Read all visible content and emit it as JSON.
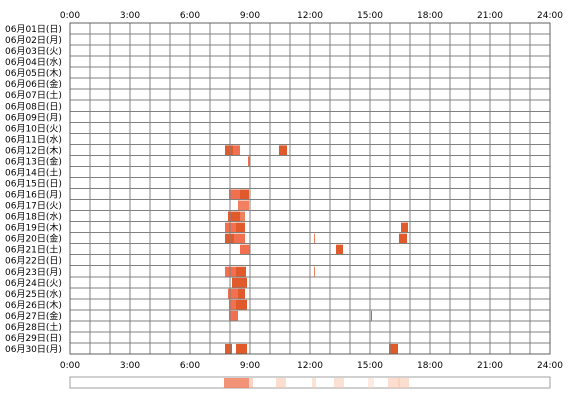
{
  "chart_data": {
    "type": "heatmap",
    "title": "",
    "xlabel": "",
    "ylabel": "",
    "x_range_hours": [
      0,
      24
    ],
    "x_ticks": [
      "0:00",
      "3:00",
      "6:00",
      "9:00",
      "12:00",
      "15:00",
      "18:00",
      "21:00",
      "24:00"
    ],
    "grid": true,
    "rows": [
      {
        "label": "06月01日(日)",
        "segments": []
      },
      {
        "label": "06月02日(月)",
        "segments": []
      },
      {
        "label": "06月03日(火)",
        "segments": []
      },
      {
        "label": "06月04日(水)",
        "segments": []
      },
      {
        "label": "06月05日(木)",
        "segments": []
      },
      {
        "label": "06月06日(金)",
        "segments": []
      },
      {
        "label": "06月07日(土)",
        "segments": []
      },
      {
        "label": "06月08日(日)",
        "segments": []
      },
      {
        "label": "06月09日(月)",
        "segments": []
      },
      {
        "label": "06月10日(火)",
        "segments": []
      },
      {
        "label": "06月11日(水)",
        "segments": []
      },
      {
        "label": "06月12日(木)",
        "segments": [
          [
            7.75,
            8.15,
            "#e05a2b"
          ],
          [
            8.15,
            8.5,
            "#f07050"
          ],
          [
            10.45,
            10.85,
            "#e05a2b"
          ]
        ]
      },
      {
        "label": "06月13日(金)",
        "segments": [
          [
            8.9,
            9.0,
            "#f07050"
          ]
        ]
      },
      {
        "label": "06月14日(土)",
        "segments": []
      },
      {
        "label": "06月15日(日)",
        "segments": []
      },
      {
        "label": "06月16日(月)",
        "segments": [
          [
            7.95,
            8.5,
            "#f07050"
          ],
          [
            8.5,
            8.95,
            "#e05a2b"
          ]
        ]
      },
      {
        "label": "06月17日(火)",
        "segments": [
          [
            8.4,
            8.95,
            "#f08060"
          ]
        ]
      },
      {
        "label": "06月18日(水)",
        "segments": [
          [
            7.9,
            8.5,
            "#e05a2b"
          ],
          [
            8.5,
            8.75,
            "#f08060"
          ]
        ]
      },
      {
        "label": "06月19日(木)",
        "segments": [
          [
            7.75,
            8.3,
            "#f07050"
          ],
          [
            8.3,
            8.75,
            "#e05a2b"
          ],
          [
            16.55,
            16.9,
            "#e05a2b"
          ]
        ]
      },
      {
        "label": "06月20日(金)",
        "segments": [
          [
            7.75,
            8.2,
            "#e05a2b"
          ],
          [
            8.2,
            8.75,
            "#f07050"
          ],
          [
            12.2,
            12.25,
            "#f08060"
          ],
          [
            16.45,
            16.85,
            "#e05a2b"
          ]
        ]
      },
      {
        "label": "06月21日(土)",
        "segments": [
          [
            8.5,
            9.0,
            "#f07050"
          ],
          [
            13.3,
            13.65,
            "#e05a2b"
          ]
        ]
      },
      {
        "label": "06月22日(日)",
        "segments": []
      },
      {
        "label": "06月23日(月)",
        "segments": [
          [
            7.75,
            8.3,
            "#f07050"
          ],
          [
            8.3,
            8.8,
            "#e05a2b"
          ],
          [
            12.2,
            12.25,
            "#f08060"
          ]
        ]
      },
      {
        "label": "06月24日(火)",
        "segments": [
          [
            8.1,
            8.85,
            "#e05a2b"
          ]
        ]
      },
      {
        "label": "06月25日(水)",
        "segments": [
          [
            7.9,
            8.4,
            "#f07050"
          ],
          [
            8.4,
            8.75,
            "#e05a2b"
          ]
        ]
      },
      {
        "label": "06月26日(木)",
        "segments": [
          [
            7.95,
            8.3,
            "#f07050"
          ],
          [
            8.3,
            8.85,
            "#e05a2b"
          ]
        ]
      },
      {
        "label": "06月27日(金)",
        "segments": [
          [
            7.95,
            8.4,
            "#f07050"
          ],
          [
            15.05,
            15.1,
            "#e05a2b"
          ]
        ]
      },
      {
        "label": "06月28日(土)",
        "segments": []
      },
      {
        "label": "06月29日(日)",
        "segments": []
      },
      {
        "label": "06月30日(月)",
        "segments": [
          [
            7.75,
            8.1,
            "#e05a2b"
          ],
          [
            8.3,
            8.85,
            "#e05a2b"
          ],
          [
            15.95,
            16.4,
            "#e05a2b"
          ]
        ]
      }
    ],
    "summary_bar": [
      [
        7.7,
        8.95,
        "#f08060",
        0.85
      ],
      [
        8.95,
        9.15,
        "#f4a080",
        0.45
      ],
      [
        10.3,
        10.8,
        "#f8c8b0",
        0.6
      ],
      [
        12.1,
        12.3,
        "#f8c8b0",
        0.5
      ],
      [
        13.2,
        13.7,
        "#f8c8b0",
        0.55
      ],
      [
        14.9,
        15.2,
        "#fbd8c8",
        0.5
      ],
      [
        15.9,
        16.5,
        "#f8c8b0",
        0.6
      ],
      [
        16.4,
        16.95,
        "#f8c8b0",
        0.6
      ]
    ]
  },
  "colors": {
    "grid": "#808080",
    "border": "#606060",
    "bar_dark": "#e05a2b",
    "bar_light": "#f07050"
  }
}
